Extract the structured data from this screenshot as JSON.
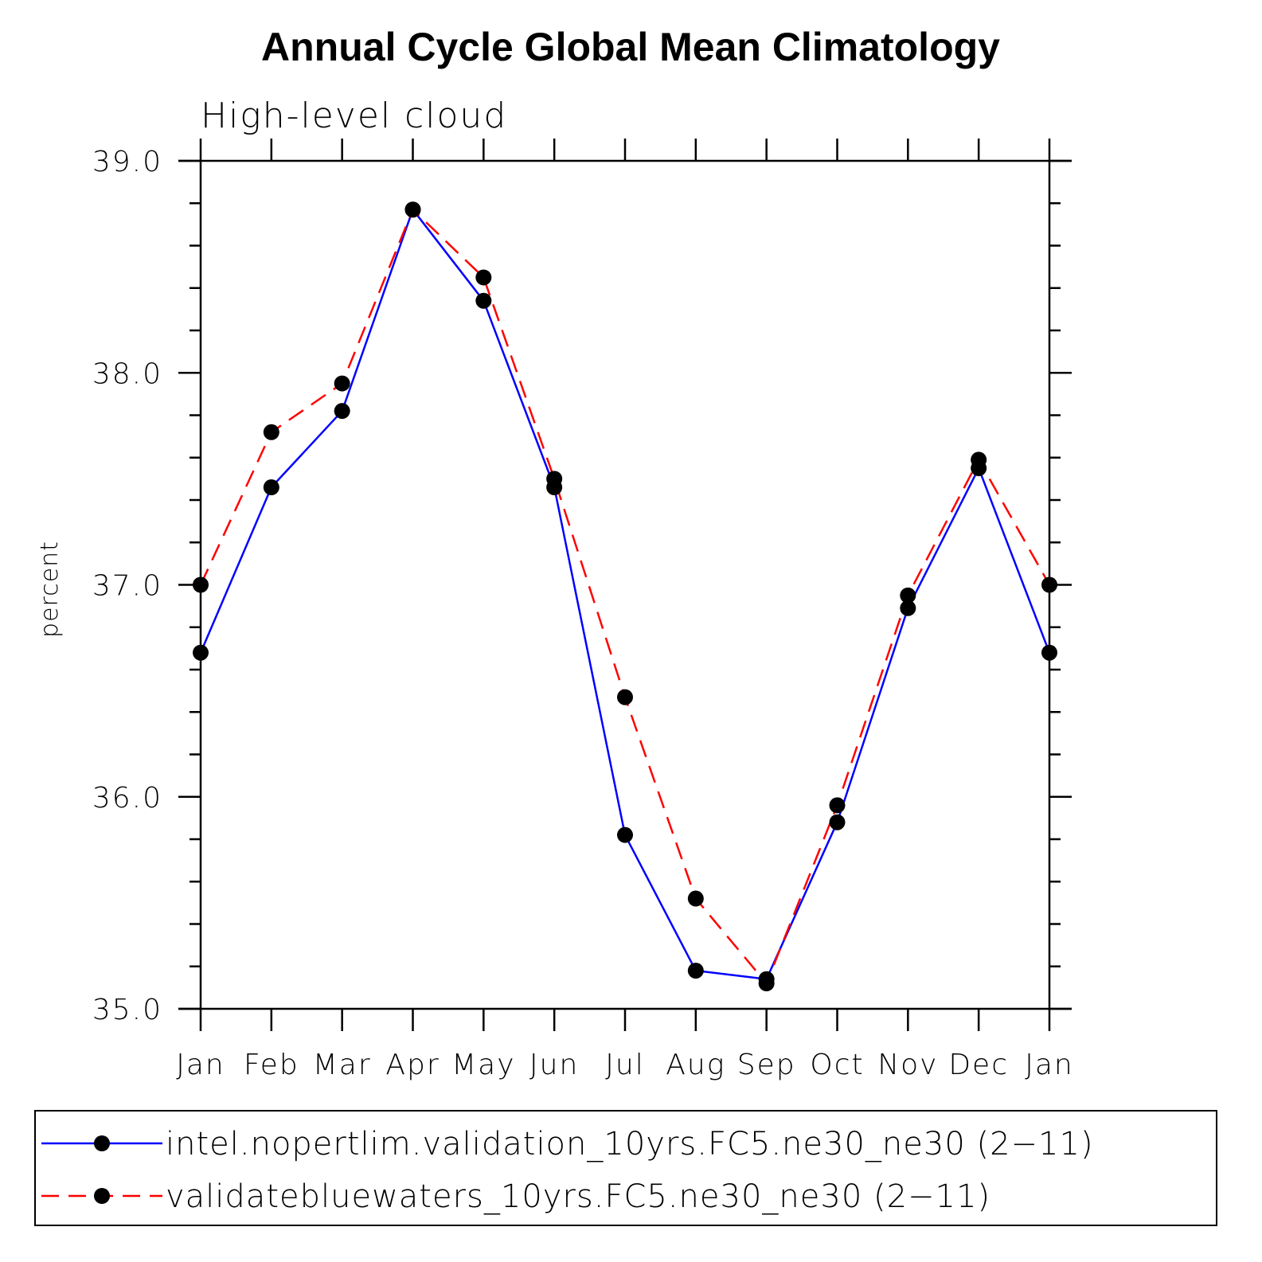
{
  "chart_data": {
    "type": "line",
    "title": "Annual Cycle Global Mean Climatology",
    "subtitle": "High-level cloud",
    "xlabel": "",
    "ylabel": "percent",
    "categories": [
      "Jan",
      "Feb",
      "Mar",
      "Apr",
      "May",
      "Jun",
      "Jul",
      "Aug",
      "Sep",
      "Oct",
      "Nov",
      "Dec",
      "Jan"
    ],
    "ylim": [
      35.0,
      39.0
    ],
    "yticks": [
      "35.0",
      "36.0",
      "37.0",
      "38.0",
      "39.0"
    ],
    "ytick_values": [
      35.0,
      36.0,
      37.0,
      38.0,
      39.0
    ],
    "ymajor_step": 1.0,
    "yminor_step": 0.2,
    "grid": false,
    "legend_position": "bottom",
    "series": [
      {
        "name": "intel.nopertlim.validation_10yrs.FC5.ne30_ne30 (2−11)",
        "color": "#0000ff",
        "dash": "solid",
        "marker": "filled-circle",
        "values": [
          36.68,
          37.46,
          37.82,
          38.77,
          38.34,
          37.46,
          35.82,
          35.18,
          35.14,
          35.88,
          36.89,
          37.55,
          36.68
        ]
      },
      {
        "name": "validatebluewaters_10yrs.FC5.ne30_ne30 (2−11)",
        "color": "#ff0000",
        "dash": "dashed",
        "marker": "filled-circle",
        "values": [
          37.0,
          37.72,
          37.95,
          38.77,
          38.45,
          37.5,
          36.47,
          35.52,
          35.12,
          35.96,
          36.95,
          37.59,
          37.0
        ]
      }
    ]
  }
}
